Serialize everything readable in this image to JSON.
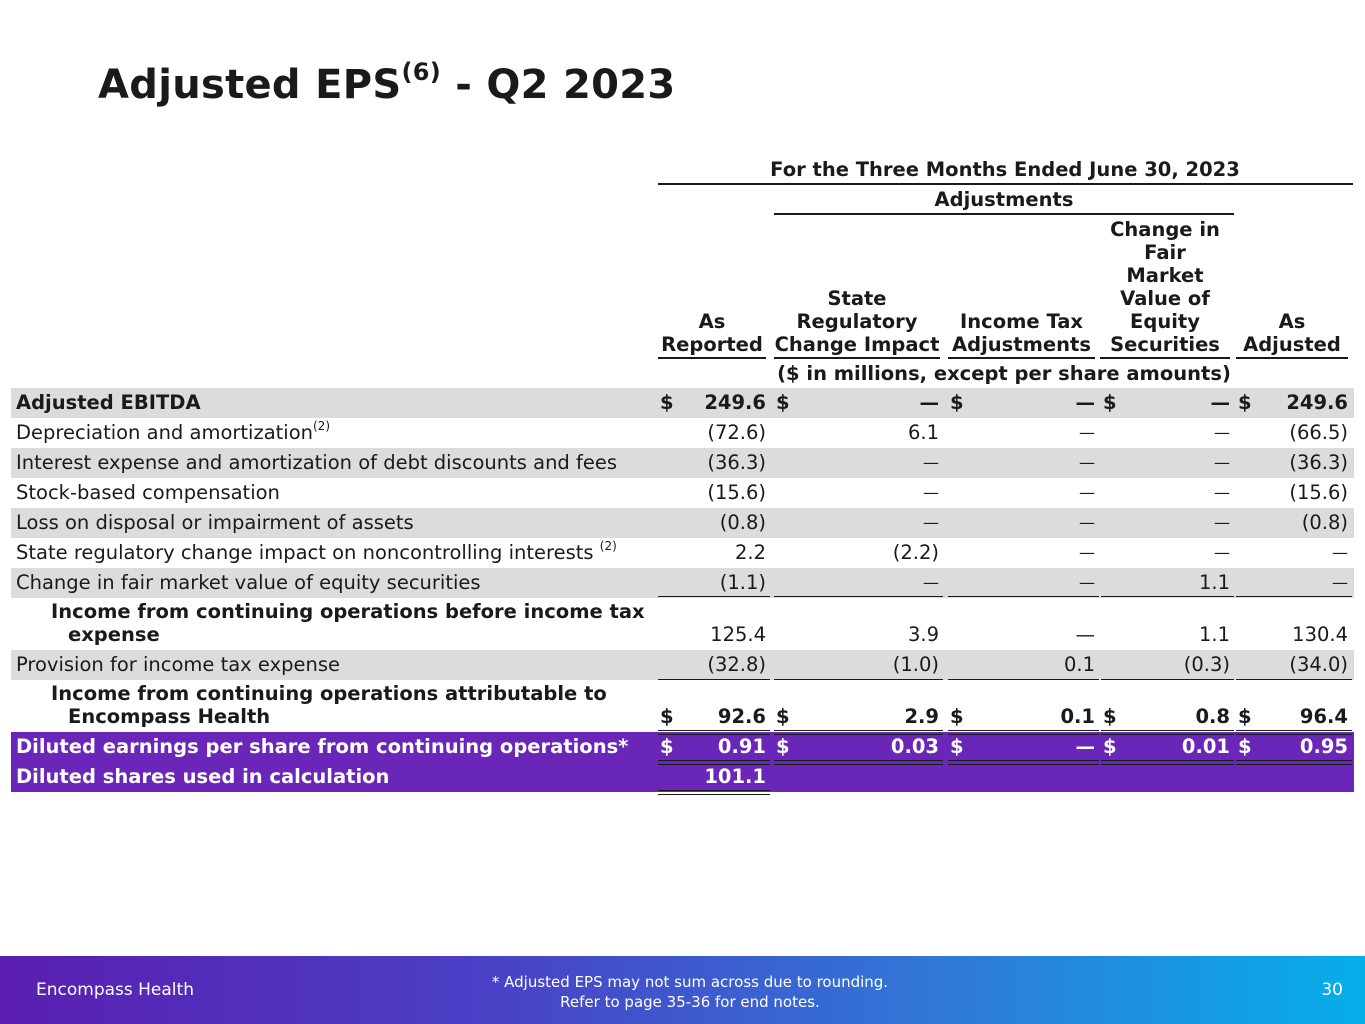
{
  "title": {
    "main": "Adjusted EPS",
    "sup": "(6)",
    "suffix": " - Q2 2023"
  },
  "header": {
    "period": "For the Three Months Ended June 30, 2023",
    "adjustments": "Adjustments",
    "units": "($ in millions, except per share amounts)",
    "columns": [
      {
        "line1": "",
        "line2": "",
        "line3": "",
        "line4": "",
        "line5": "As",
        "line6": "Reported"
      },
      {
        "line1": "",
        "line2": "",
        "line3": "",
        "line4": "State",
        "line5": "Regulatory",
        "line6": "Change Impact"
      },
      {
        "line1": "",
        "line2": "",
        "line3": "",
        "line4": "",
        "line5": "Income Tax",
        "line6": "Adjustments"
      },
      {
        "line1": "Change in",
        "line2": "Fair",
        "line3": "Market",
        "line4": "Value of",
        "line5": "Equity",
        "line6": "Securities"
      },
      {
        "line1": "",
        "line2": "",
        "line3": "",
        "line4": "",
        "line5": "As",
        "line6": "Adjusted"
      }
    ]
  },
  "rows": [
    {
      "label": "Adjusted EBITDA",
      "sup": "",
      "dollar": [
        "$",
        "$",
        "$",
        "$",
        "$"
      ],
      "values": [
        "249.6",
        "—",
        "—",
        "—",
        "249.6"
      ]
    },
    {
      "label": "Depreciation and amortization",
      "sup": "(2)",
      "dollar": [
        "",
        "",
        "",
        "",
        ""
      ],
      "values": [
        "(72.6)",
        "6.1",
        "—",
        "—",
        "(66.5)"
      ]
    },
    {
      "label": "Interest expense and amortization of debt discounts and fees",
      "sup": "",
      "dollar": [
        "",
        "",
        "",
        "",
        ""
      ],
      "values": [
        "(36.3)",
        "—",
        "—",
        "—",
        "(36.3)"
      ]
    },
    {
      "label": "Stock-based compensation",
      "sup": "",
      "dollar": [
        "",
        "",
        "",
        "",
        ""
      ],
      "values": [
        "(15.6)",
        "—",
        "—",
        "—",
        "(15.6)"
      ]
    },
    {
      "label": "Loss on disposal or impairment of assets",
      "sup": "",
      "dollar": [
        "",
        "",
        "",
        "",
        ""
      ],
      "values": [
        "(0.8)",
        "—",
        "—",
        "—",
        "(0.8)"
      ]
    },
    {
      "label": "State regulatory change impact on noncontrolling interests ",
      "sup": "(2)",
      "dollar": [
        "",
        "",
        "",
        "",
        ""
      ],
      "values": [
        "2.2",
        "(2.2)",
        "—",
        "—",
        "—"
      ]
    },
    {
      "label": "Change in fair market value of equity securities",
      "sup": "",
      "dollar": [
        "",
        "",
        "",
        "",
        ""
      ],
      "values": [
        "(1.1)",
        "—",
        "—",
        "1.1",
        "—"
      ]
    },
    {
      "label_line1": "Income from continuing operations before income tax",
      "label_line2": "expense",
      "dollar": [
        "",
        "",
        "",
        "",
        ""
      ],
      "values": [
        "125.4",
        "3.9",
        "—",
        "1.1",
        "130.4"
      ]
    },
    {
      "label": "Provision for income tax expense",
      "sup": "",
      "dollar": [
        "",
        "",
        "",
        "",
        ""
      ],
      "values": [
        "(32.8)",
        "(1.0)",
        "0.1",
        "(0.3)",
        "(34.0)"
      ]
    },
    {
      "label_line1": "Income from continuing operations attributable to",
      "label_line2": "Encompass Health",
      "dollar": [
        "$",
        "$",
        "$",
        "$",
        "$"
      ],
      "values": [
        "92.6",
        "2.9",
        "0.1",
        "0.8",
        "96.4"
      ]
    },
    {
      "label": "Diluted earnings per share from continuing operations*",
      "sup": "",
      "dollar": [
        "$",
        "$",
        "$",
        "$",
        "$"
      ],
      "values": [
        "0.91",
        "0.03",
        "—",
        "0.01",
        "0.95"
      ]
    },
    {
      "label": "Diluted shares used in calculation",
      "sup": "",
      "dollar": [
        "",
        "",
        "",
        "",
        ""
      ],
      "values": [
        "101.1",
        "",
        "",
        "",
        ""
      ]
    }
  ],
  "footer": {
    "company": "Encompass Health",
    "note_line1": "*  Adjusted EPS may not sum across due to rounding.",
    "note_line2": "Refer to page 35-36 for end notes.",
    "page": "30"
  },
  "colors": {
    "shade": "#dcdcdc",
    "purple": "#6a26b8"
  }
}
